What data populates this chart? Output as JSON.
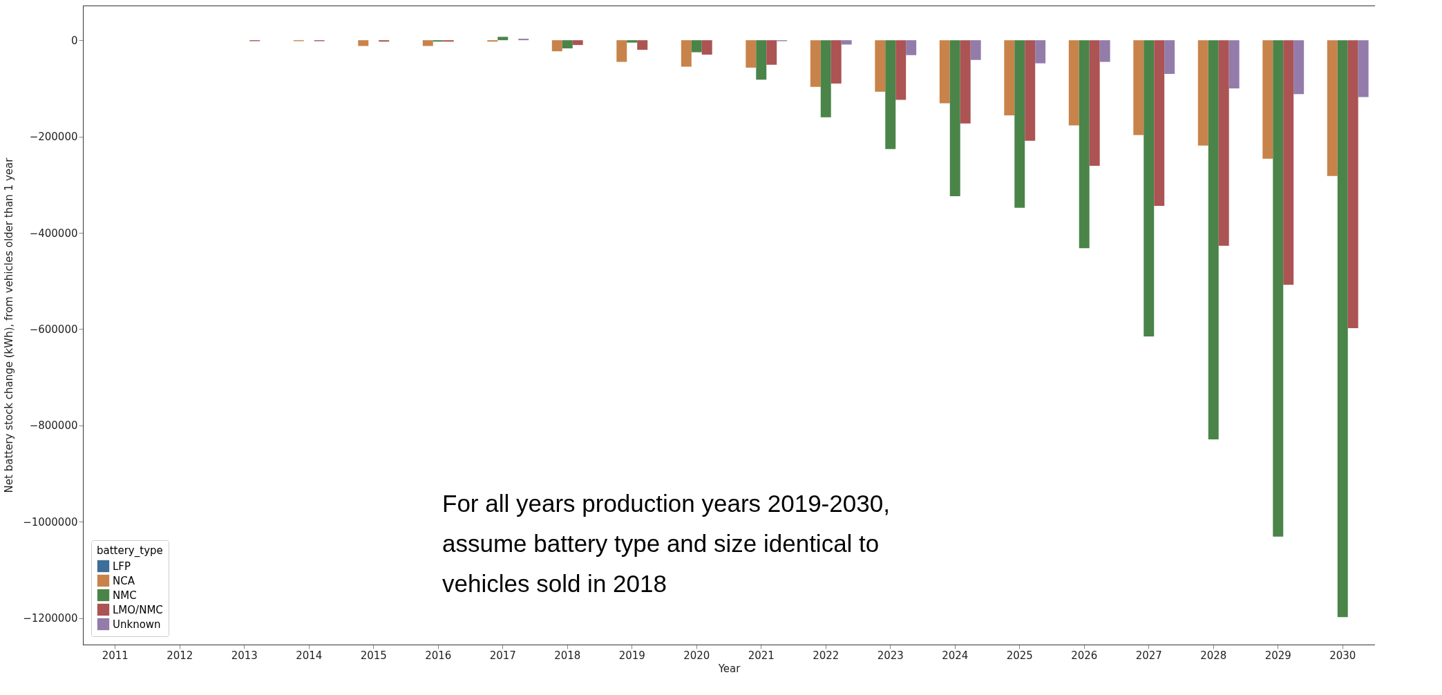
{
  "chart_data": {
    "type": "bar",
    "xlabel": "Year",
    "ylabel": "Net battery stock change (kWh), from vehicles older than 1 year",
    "legend_title": "battery_type",
    "legend": "bottom left",
    "grid": false,
    "categories": [
      "2011",
      "2012",
      "2013",
      "2014",
      "2015",
      "2016",
      "2017",
      "2018",
      "2019",
      "2020",
      "2021",
      "2022",
      "2023",
      "2024",
      "2025",
      "2026",
      "2027",
      "2028",
      "2029",
      "2030"
    ],
    "series": [
      {
        "name": "LFP",
        "color": "#3d6d99",
        "values": [
          null,
          null,
          null,
          null,
          null,
          null,
          null,
          null,
          null,
          null,
          null,
          null,
          null,
          null,
          null,
          null,
          null,
          null,
          null,
          null
        ]
      },
      {
        "name": "NCA",
        "color": "#c8834a",
        "values": [
          null,
          null,
          null,
          -2000,
          -12000,
          -12000,
          -3000,
          -23000,
          -45000,
          -55000,
          -57000,
          -97000,
          -107000,
          -131000,
          -156000,
          -177000,
          -197000,
          -219000,
          -246000,
          -282000
        ]
      },
      {
        "name": "NMC",
        "color": "#4a8449",
        "values": [
          null,
          null,
          null,
          null,
          null,
          -3000,
          7000,
          -17000,
          -5000,
          -25000,
          -82000,
          -160000,
          -226000,
          -324000,
          -348000,
          -432000,
          -615000,
          -829000,
          -1031000,
          -1198000
        ]
      },
      {
        "name": "LMO/NMC",
        "color": "#ac5353",
        "values": [
          null,
          null,
          -2000,
          -2000,
          -3000,
          -3000,
          null,
          -10000,
          -20000,
          -30000,
          -51000,
          -90000,
          -124000,
          -173000,
          -209000,
          -261000,
          -344000,
          -427000,
          -508000,
          -598000
        ]
      },
      {
        "name": "Unknown",
        "color": "#937caa",
        "values": [
          null,
          null,
          null,
          null,
          null,
          null,
          3000,
          null,
          null,
          null,
          -2000,
          -9000,
          -31000,
          -41000,
          -48000,
          -45000,
          -70000,
          -100000,
          -112000,
          -118000
        ]
      }
    ],
    "ylim": [
      -1255000,
      72000
    ],
    "yticks": [
      -1200000,
      -1000000,
      -800000,
      -600000,
      -400000,
      -200000,
      0
    ],
    "annotations": [
      "For all years production years 2019-2030,\nassume battery type and size identical to\nvehicles sold in 2018"
    ]
  }
}
